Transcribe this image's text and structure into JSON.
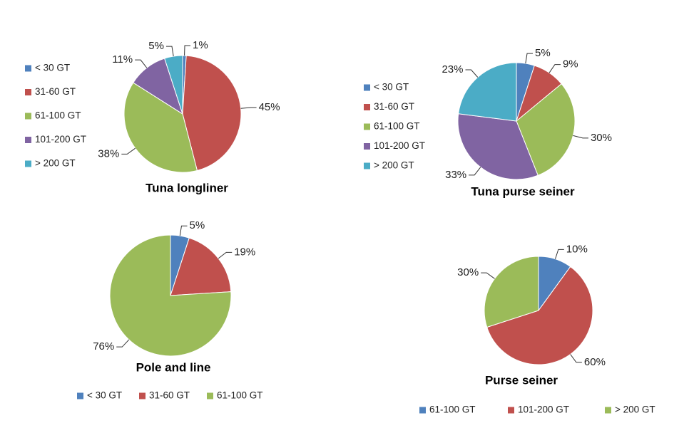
{
  "chart_data": [
    {
      "type": "pie",
      "title": "Tuna longliner",
      "categories": [
        "< 30 GT",
        "31-60 GT",
        "61-100 GT",
        "101-200 GT",
        "> 200 GT"
      ],
      "values": [
        1,
        45,
        38,
        11,
        5
      ],
      "value_labels": [
        "1%",
        "45%",
        "38%",
        "11%",
        "5%"
      ],
      "colors": [
        "#4f81bd",
        "#c0504d",
        "#9bbb59",
        "#8064a2",
        "#4bacc6"
      ],
      "legend": "left"
    },
    {
      "type": "pie",
      "title": "Tuna purse seiner",
      "categories": [
        "< 30 GT",
        "31-60 GT",
        "61-100 GT",
        "101-200 GT",
        "> 200 GT"
      ],
      "values": [
        5,
        9,
        30,
        33,
        23
      ],
      "value_labels": [
        "5%",
        "9%",
        "30%",
        "33%",
        "23%"
      ],
      "colors": [
        "#4f81bd",
        "#c0504d",
        "#9bbb59",
        "#8064a2",
        "#4bacc6"
      ],
      "legend": "left"
    },
    {
      "type": "pie",
      "title": "Pole and line",
      "categories": [
        "< 30 GT",
        "31-60 GT",
        "61-100 GT"
      ],
      "values": [
        5,
        19,
        76
      ],
      "value_labels": [
        "5%",
        "19%",
        "76%"
      ],
      "colors": [
        "#4f81bd",
        "#c0504d",
        "#9bbb59"
      ],
      "legend": "bottom"
    },
    {
      "type": "pie",
      "title": "Purse seiner",
      "categories": [
        "61-100 GT",
        "101-200 GT",
        "> 200 GT"
      ],
      "values": [
        10,
        60,
        30
      ],
      "value_labels": [
        "10%",
        "60%",
        "30%"
      ],
      "colors": [
        "#4f81bd",
        "#c0504d",
        "#9bbb59"
      ],
      "legend": "bottom"
    }
  ]
}
